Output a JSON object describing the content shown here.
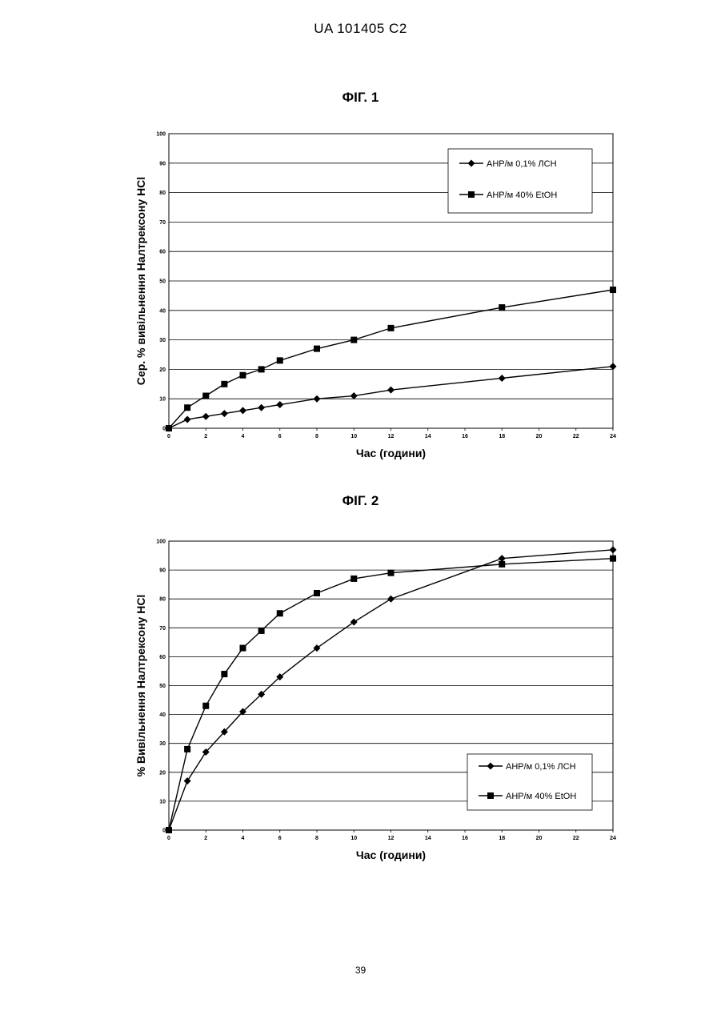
{
  "header": {
    "doc_id": "UA   101405   C2"
  },
  "footer": {
    "page_number": "39"
  },
  "chart_data": [
    {
      "type": "line",
      "title": "ФІГ. 1",
      "xlabel": "Час (години)",
      "ylabel": "Сер. % вивільнення Налтрексону HCl",
      "xlim": [
        0,
        24
      ],
      "ylim": [
        0,
        100
      ],
      "xticks": [
        "0",
        "2",
        "4",
        "6",
        "8",
        "10",
        "12",
        "14",
        "16",
        "18",
        "20",
        "22",
        "24"
      ],
      "yticks": [
        "0",
        "10",
        "20",
        "30",
        "40",
        "50",
        "60",
        "70",
        "80",
        "90",
        "100"
      ],
      "grid": "horizontal",
      "legend_position": "top-right",
      "series": [
        {
          "name": "AHP/м 0,1% ЛСН",
          "marker": "diamond",
          "x": [
            0,
            1,
            2,
            3,
            4,
            5,
            6,
            8,
            10,
            12,
            18,
            24
          ],
          "y": [
            0,
            3,
            4,
            5,
            6,
            7,
            8,
            10,
            11,
            13,
            17,
            21
          ]
        },
        {
          "name": "AHP/м 40% EtOH",
          "marker": "square",
          "x": [
            0,
            1,
            2,
            3,
            4,
            5,
            6,
            8,
            10,
            12,
            18,
            24
          ],
          "y": [
            0,
            7,
            11,
            15,
            18,
            20,
            23,
            27,
            30,
            34,
            41,
            47
          ]
        }
      ]
    },
    {
      "type": "line",
      "title": "ФІГ. 2",
      "xlabel": "Час (години)",
      "ylabel": "% Вивільнення Налтрексону HCl",
      "xlim": [
        0,
        24
      ],
      "ylim": [
        0,
        100
      ],
      "xticks": [
        "0",
        "2",
        "4",
        "6",
        "8",
        "10",
        "12",
        "14",
        "16",
        "18",
        "20",
        "22",
        "24"
      ],
      "yticks": [
        "0",
        "10",
        "20",
        "30",
        "40",
        "50",
        "60",
        "70",
        "80",
        "90",
        "100"
      ],
      "grid": "horizontal",
      "legend_position": "bottom-right",
      "series": [
        {
          "name": "AHP/м 0,1% ЛСН",
          "marker": "diamond",
          "x": [
            0,
            1,
            2,
            3,
            4,
            5,
            6,
            8,
            10,
            12,
            18,
            24
          ],
          "y": [
            0,
            17,
            27,
            34,
            41,
            47,
            53,
            63,
            72,
            80,
            94,
            97
          ]
        },
        {
          "name": "AHP/м 40% EtOH",
          "marker": "square",
          "x": [
            0,
            1,
            2,
            3,
            4,
            5,
            6,
            8,
            10,
            12,
            18,
            24
          ],
          "y": [
            0,
            28,
            43,
            54,
            63,
            69,
            75,
            82,
            87,
            89,
            92,
            94
          ]
        }
      ]
    }
  ]
}
